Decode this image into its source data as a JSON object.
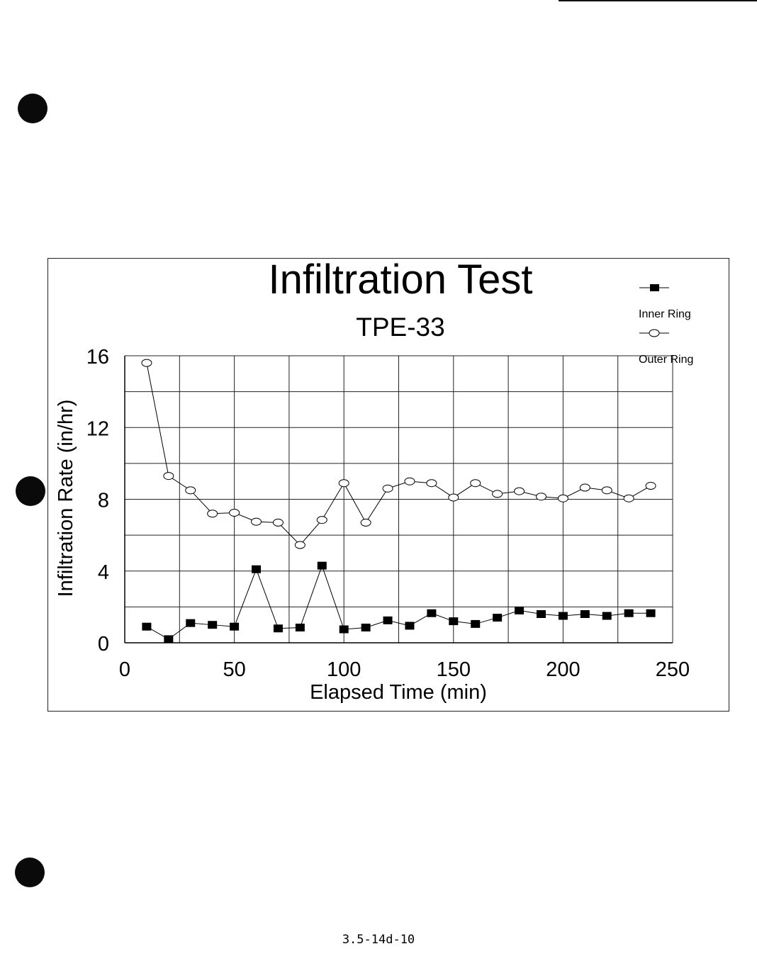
{
  "page_number": "3.5-14d-10",
  "chart_data": {
    "type": "line",
    "title": "Infiltration Test",
    "subtitle": "TPE-33",
    "xlabel": "Elapsed Time (min)",
    "ylabel": "Infiltration Rate (in/hr)",
    "xlim": [
      0,
      250
    ],
    "ylim": [
      0,
      16
    ],
    "xticks": [
      0,
      50,
      100,
      150,
      200,
      250
    ],
    "yticks": [
      0,
      4,
      8,
      12,
      16
    ],
    "grid": true,
    "legend_position": "top-right",
    "x": [
      10,
      20,
      30,
      40,
      50,
      60,
      70,
      80,
      90,
      100,
      110,
      120,
      130,
      140,
      150,
      160,
      170,
      180,
      190,
      200,
      210,
      220,
      230,
      240
    ],
    "series": [
      {
        "name": "Inner Ring",
        "marker": "filled-square",
        "color": "#000000",
        "values": [
          0.9,
          0.2,
          1.1,
          1.0,
          0.9,
          4.1,
          0.8,
          0.85,
          4.3,
          0.75,
          0.85,
          1.25,
          0.95,
          1.65,
          1.2,
          1.05,
          1.4,
          1.8,
          1.6,
          1.5,
          1.6,
          1.5,
          1.65,
          1.65
        ]
      },
      {
        "name": "Outer Ring",
        "marker": "open-circle",
        "color": "#000000",
        "values": [
          15.6,
          9.3,
          8.5,
          7.2,
          7.25,
          6.75,
          6.7,
          5.45,
          6.85,
          8.9,
          6.7,
          8.6,
          9.0,
          8.9,
          8.1,
          8.9,
          8.3,
          8.45,
          8.15,
          8.05,
          8.65,
          8.5,
          8.05,
          8.75
        ]
      }
    ]
  }
}
